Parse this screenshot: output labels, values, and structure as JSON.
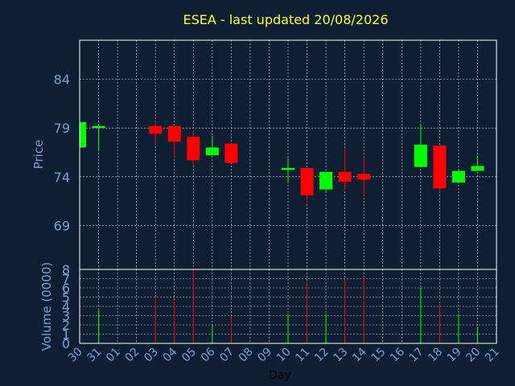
{
  "chart_data": {
    "type": "candlestick",
    "title": "ESEA - last updated 20/08/2026",
    "price_panel": {
      "ylabel": "Price",
      "yticks": [
        69,
        74,
        79,
        84
      ],
      "ylim": [
        64.5,
        88.0
      ]
    },
    "volume_panel": {
      "ylabel": "Volume (0000)",
      "yticks": [
        0,
        1,
        2,
        3,
        4,
        5,
        6,
        7,
        8
      ],
      "ylim": [
        0,
        8
      ]
    },
    "xlabel": "Day",
    "x_ticks": [
      "30",
      "31",
      "01",
      "02",
      "03",
      "04",
      "05",
      "06",
      "07",
      "08",
      "09",
      "10",
      "11",
      "12",
      "13",
      "14",
      "15",
      "16",
      "17",
      "18",
      "19",
      "20",
      "21"
    ],
    "candles": [
      {
        "day": "30",
        "open": 77.0,
        "high": 79.6,
        "low": 77.0,
        "close": 79.6,
        "volume": 0
      },
      {
        "day": "31",
        "open": 79.0,
        "high": 79.3,
        "low": 76.6,
        "close": 79.2,
        "volume": 3.6
      },
      {
        "day": "03",
        "open": 79.2,
        "high": 79.8,
        "low": 77.3,
        "close": 78.4,
        "volume": 5.0
      },
      {
        "day": "04",
        "open": 79.2,
        "high": 79.2,
        "low": 75.9,
        "close": 77.6,
        "volume": 4.6
      },
      {
        "day": "05",
        "open": 78.1,
        "high": 78.7,
        "low": 75.2,
        "close": 75.7,
        "volume": 8.0
      },
      {
        "day": "06",
        "open": 76.2,
        "high": 78.2,
        "low": 76.2,
        "close": 77.0,
        "volume": 2.0
      },
      {
        "day": "07",
        "open": 77.4,
        "high": 77.4,
        "low": 75.4,
        "close": 75.4,
        "volume": 3.0
      },
      {
        "day": "10",
        "open": 74.7,
        "high": 75.9,
        "low": 73.3,
        "close": 74.9,
        "volume": 3.2
      },
      {
        "day": "11",
        "open": 74.9,
        "high": 74.9,
        "low": 71.2,
        "close": 72.1,
        "volume": 6.6
      },
      {
        "day": "12",
        "open": 72.7,
        "high": 74.5,
        "low": 72.5,
        "close": 74.5,
        "volume": 3.2
      },
      {
        "day": "13",
        "open": 74.5,
        "high": 77.0,
        "low": 72.6,
        "close": 73.5,
        "volume": 7.0
      },
      {
        "day": "14",
        "open": 74.3,
        "high": 75.9,
        "low": 72.1,
        "close": 73.7,
        "volume": 7.2
      },
      {
        "day": "17",
        "open": 75.0,
        "high": 79.4,
        "low": 75.0,
        "close": 77.3,
        "volume": 6.0
      },
      {
        "day": "18",
        "open": 77.2,
        "high": 77.2,
        "low": 72.4,
        "close": 72.8,
        "volume": 4.4
      },
      {
        "day": "19",
        "open": 73.4,
        "high": 74.7,
        "low": 73.4,
        "close": 74.6,
        "volume": 3.2
      },
      {
        "day": "20",
        "open": 74.6,
        "high": 76.2,
        "low": 74.6,
        "close": 75.1,
        "volume": 1.8
      }
    ],
    "grid": true,
    "colors": {
      "background": "#0f1f33",
      "up": "#00ff00",
      "down": "#ff0000",
      "title": "#ffff33",
      "axis_text": "#7f9fcf",
      "grid": "#ffffff"
    }
  }
}
